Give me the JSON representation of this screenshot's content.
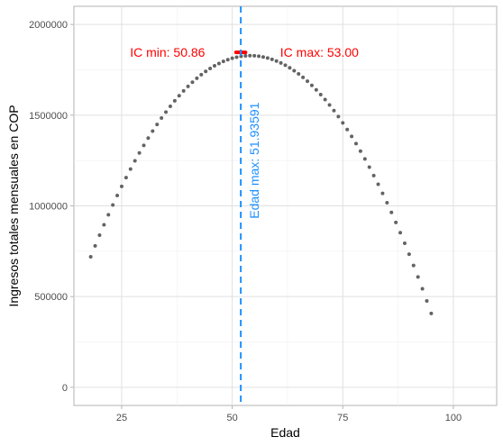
{
  "chart_data": {
    "type": "scatter",
    "xlabel": "Edad",
    "ylabel": "Ingresos totales mensuales en COP",
    "xlim": [
      14.2,
      109.8
    ],
    "ylim": [
      -100000,
      2100000
    ],
    "x_ticks": [
      25,
      50,
      75,
      100
    ],
    "y_ticks": [
      0,
      500000,
      1000000,
      1500000,
      2000000
    ],
    "grid": true,
    "points": {
      "color": "#636363",
      "x": [
        18,
        19,
        20,
        21,
        22,
        23,
        24,
        25,
        26,
        27,
        28,
        29,
        30,
        31,
        32,
        33,
        34,
        35,
        36,
        37,
        38,
        39,
        40,
        41,
        42,
        43,
        44,
        45,
        46,
        47,
        48,
        49,
        50,
        51,
        52,
        53,
        54,
        55,
        56,
        57,
        58,
        59,
        60,
        61,
        62,
        63,
        64,
        65,
        66,
        67,
        68,
        69,
        70,
        71,
        72,
        73,
        74,
        75,
        76,
        77,
        78,
        79,
        80,
        81,
        82,
        83,
        84,
        85,
        86,
        87,
        88,
        89,
        90,
        91,
        92,
        93,
        94,
        95
      ],
      "y": [
        719400,
        779900,
        838700,
        895800,
        951200,
        1004900,
        1057000,
        1107300,
        1156000,
        1202900,
        1248200,
        1291700,
        1333600,
        1373700,
        1412200,
        1448900,
        1484000,
        1517300,
        1549000,
        1578900,
        1607200,
        1633700,
        1658600,
        1681700,
        1703200,
        1722900,
        1741000,
        1757300,
        1772000,
        1784900,
        1796200,
        1805700,
        1813600,
        1819700,
        1824200,
        1826900,
        1828000,
        1827300,
        1825000,
        1820900,
        1815200,
        1807700,
        1798600,
        1787700,
        1775200,
        1760900,
        1745000,
        1727300,
        1708000,
        1686900,
        1664200,
        1639700,
        1613600,
        1585700,
        1556200,
        1524900,
        1492000,
        1457300,
        1421000,
        1382900,
        1343200,
        1301700,
        1258600,
        1213700,
        1167200,
        1118900,
        1069000,
        1017300,
        964000,
        908900,
        852200,
        793700,
        733600,
        671700,
        608200,
        542900,
        476000,
        407300
      ]
    },
    "ci": {
      "min": 50.86,
      "max": 53.0,
      "y": 1846000,
      "color": "#ff0000"
    },
    "vline": {
      "x": 51.93591,
      "color": "#1e90ff"
    },
    "annotations": {
      "ic_min": "IC min: 50.86",
      "ic_max": "IC max: 53.00",
      "vline_label": "Edad max: 51.93591"
    }
  }
}
